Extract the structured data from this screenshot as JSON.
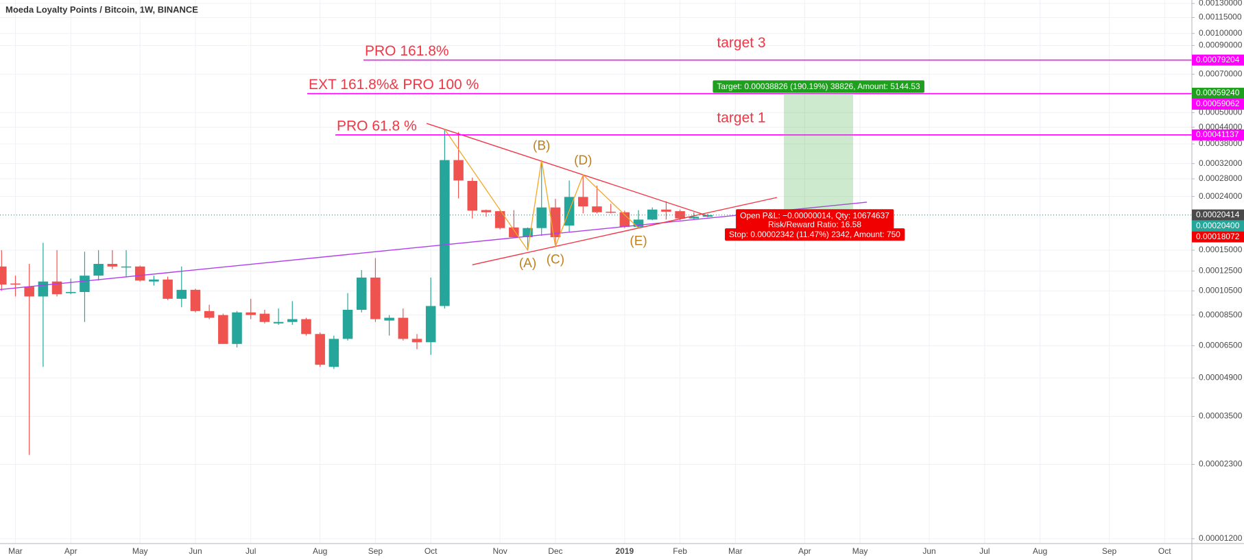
{
  "chart_data": {
    "type": "candlestick",
    "title": "Moeda Loyalty Points / Bitcoin, 1W, BINANCE",
    "log_scale": true,
    "grid": true,
    "up_color": "#26a69a",
    "down_color": "#ef5350",
    "categories": [
      null,
      "Mar",
      null,
      null,
      null,
      "Apr",
      null,
      null,
      null,
      null,
      "May",
      null,
      null,
      null,
      "Jun",
      null,
      null,
      null,
      "Jul",
      null,
      null,
      null,
      null,
      "Aug",
      null,
      null,
      null,
      "Sep",
      null,
      null,
      null,
      "Oct",
      null,
      null,
      null,
      null,
      "Nov",
      null,
      null,
      null,
      "Dec",
      null,
      null,
      null,
      null,
      "2019",
      null,
      null,
      null,
      "Feb",
      null,
      null,
      null,
      "Mar",
      null,
      null,
      null,
      null,
      "Apr",
      null,
      null,
      null,
      "May",
      null,
      null,
      null,
      null,
      "Jun",
      null,
      null,
      null,
      "Jul",
      null,
      null,
      null,
      "Aug",
      null,
      null,
      null,
      null,
      "Sep",
      null,
      null,
      null,
      "Oct",
      null
    ],
    "open": [
      0.00013,
      0.000112,
      0.000109,
      0.0001,
      0.000114,
      0.000103,
      0.000104,
      0.00012,
      0.000133,
      0.000129,
      0.00013,
      0.000114,
      0.000116,
      9.8e-05,
      0.000106,
      8.8e-05,
      8.5e-05,
      6.6e-05,
      8.7e-05,
      8.6e-05,
      7.9e-05,
      8e-05,
      8.2e-05,
      7.2e-05,
      5.4e-05,
      6.9e-05,
      8.9e-05,
      0.000118,
      8.1e-05,
      8.3e-05,
      6.9e-05,
      6.7e-05,
      9.2e-05,
      0.00033,
      0.000275,
      0.000213,
      0.000211,
      0.000183,
      0.000168,
      0.000182,
      0.000218,
      0.000186,
      0.000239,
      0.00022,
      0.00021,
      0.000209,
      0.000184,
      0.000196,
      0.000214,
      0.000211,
      0.000198,
      0.000201,
      null,
      null,
      null,
      null,
      null,
      null,
      null,
      null,
      null,
      null,
      null,
      null,
      null,
      null,
      null,
      null,
      null,
      null,
      null,
      null,
      null,
      null,
      null,
      null,
      null,
      null,
      null,
      null,
      null,
      null,
      null,
      null,
      null,
      null
    ],
    "high": [
      0.00015,
      0.00012,
      0.000133,
      0.00016,
      0.00015,
      0.000117,
      0.000148,
      0.00015,
      0.00015,
      0.00015,
      0.000131,
      0.00012,
      0.000119,
      0.00013,
      0.000107,
      9.3e-05,
      8.6e-05,
      8.8e-05,
      9.8e-05,
      8.9e-05,
      9e-05,
      9.6e-05,
      8.3e-05,
      7.3e-05,
      7.1e-05,
      0.000103,
      0.000126,
      0.00014,
      8.5e-05,
      9e-05,
      7.2e-05,
      0.000118,
      0.000432,
      0.000422,
      0.000283,
      0.000214,
      0.000212,
      0.000213,
      0.000183,
      0.00033,
      0.000235,
      0.000276,
      0.00029,
      0.000264,
      0.000225,
      0.000212,
      0.000213,
      0.000218,
      0.00023,
      0.000214,
      0.000209,
      0.000206,
      null,
      null,
      null,
      null,
      null,
      null,
      null,
      null,
      null,
      null,
      null,
      null,
      null,
      null,
      null,
      null,
      null,
      null,
      null,
      null,
      null,
      null,
      null,
      null,
      null,
      null,
      null,
      null,
      null,
      null,
      null,
      null,
      null,
      null
    ],
    "low": [
      0.000105,
      0.0001,
      2.5e-05,
      5.4e-05,
      0.0001,
      0.000102,
      8e-05,
      0.000115,
      0.000127,
      0.000119,
      0.000114,
      0.00011,
      9.7e-05,
      9.1e-05,
      8.7e-05,
      8.2e-05,
      6.6e-05,
      6.4e-05,
      8.2e-05,
      7.9e-05,
      7.8e-05,
      7.8e-05,
      7.1e-05,
      5.4e-05,
      5.3e-05,
      6.8e-05,
      8.7e-05,
      8e-05,
      7.1e-05,
      6.8e-05,
      6.3e-05,
      6e-05,
      9e-05,
      0.000236,
      0.000198,
      0.000201,
      0.00018,
      0.000168,
      0.00015,
      0.00017,
      0.000155,
      0.000176,
      0.000207,
      0.000207,
      0.000207,
      0.000182,
      0.000182,
      0.000195,
      0.000196,
      0.000195,
      0.000196,
      0.0002,
      null,
      null,
      null,
      null,
      null,
      null,
      null,
      null,
      null,
      null,
      null,
      null,
      null,
      null,
      null,
      null,
      null,
      null,
      null,
      null,
      null,
      null,
      null,
      null,
      null,
      null,
      null,
      null,
      null,
      null,
      null,
      null,
      null,
      null
    ],
    "close": [
      0.000111,
      0.000111,
      0.0001,
      0.000114,
      0.000102,
      0.000104,
      0.00012,
      0.000133,
      0.00013,
      0.00013,
      0.000115,
      0.000116,
      9.8e-05,
      0.000106,
      8.8e-05,
      8.3e-05,
      6.6e-05,
      8.7e-05,
      8.5e-05,
      8e-05,
      8e-05,
      8.2e-05,
      7.2e-05,
      5.5e-05,
      6.9e-05,
      8.9e-05,
      0.000118,
      8.2e-05,
      8.3e-05,
      6.9e-05,
      6.7e-05,
      9.2e-05,
      0.00033,
      0.000276,
      0.000212,
      0.000209,
      0.000182,
      0.000168,
      0.000182,
      0.000218,
      0.000168,
      0.000239,
      0.00022,
      0.000209,
      0.000209,
      0.000184,
      0.000196,
      0.000214,
      0.00021,
      0.000198,
      0.000201,
      0.000204,
      null,
      null,
      null,
      null,
      null,
      null,
      null,
      null,
      null,
      null,
      null,
      null,
      null,
      null,
      null,
      null,
      null,
      null,
      null,
      null,
      null,
      null,
      null,
      null,
      null,
      null,
      null,
      null,
      null,
      null,
      null,
      null,
      null,
      null
    ],
    "ylim": [
      1.15e-05,
      0.00134
    ],
    "yticks": [
      {
        "value": 0.0013,
        "label": "0.00130000"
      },
      {
        "value": 0.00115,
        "label": "0.00115000"
      },
      {
        "value": 0.001,
        "label": "0.00100000"
      },
      {
        "value": 0.0009,
        "label": "0.00090000"
      },
      {
        "value": 0.0007,
        "label": "0.00070000"
      },
      {
        "value": 0.0005,
        "label": "0.00050000"
      },
      {
        "value": 0.00044,
        "label": "0.00044000"
      },
      {
        "value": 0.00038,
        "label": "0.00038000"
      },
      {
        "value": 0.00032,
        "label": "0.00032000"
      },
      {
        "value": 0.00028,
        "label": "0.00028000"
      },
      {
        "value": 0.00024,
        "label": "0.00024000"
      },
      {
        "value": 0.00015,
        "label": "0.00015000"
      },
      {
        "value": 0.000125,
        "label": "0.00012500"
      },
      {
        "value": 0.000105,
        "label": "0.00010500"
      },
      {
        "value": 8.5e-05,
        "label": "0.00008500"
      },
      {
        "value": 6.5e-05,
        "label": "0.00006500"
      },
      {
        "value": 4.9e-05,
        "label": "0.00004900"
      },
      {
        "value": 3.5e-05,
        "label": "0.00003500"
      },
      {
        "value": 2.3e-05,
        "label": "0.00002300"
      },
      {
        "value": 1.2e-05,
        "label": "0.00001200"
      }
    ],
    "last_price": {
      "value": 0.000204,
      "label": "0.00020400"
    },
    "level_color": "#ff00ff",
    "levels": [
      {
        "text": "PRO 161.8%",
        "note": "target 3",
        "value": 0.00079204,
        "value_label": "0.00079204"
      },
      {
        "text": "EXT 161.8%& PRO 100 %",
        "value": 0.00059062,
        "value_label": "0.00059062"
      },
      {
        "text": "PRO 61.8 %",
        "note": "target 1",
        "value": 0.00041137,
        "value_label": "0.00041137"
      }
    ],
    "waves": [
      "(A)",
      "(B)",
      "(C)",
      "(D)",
      "(E)"
    ],
    "position": {
      "entry": 0.00020414,
      "entry_label": "0.00020414",
      "target": 0.0005924,
      "target_label": "0.00059240",
      "stop": 0.00018072,
      "stop_label": "0.00018072",
      "target_text": "Target: 0.00038826 (190.19%) 38826, Amount: 5144.53",
      "pnl_text": "Open P&L: −0.00000014, Qty: 10674637",
      "rr_text": "Risk/Reward Ratio: 16.58",
      "stop_text": "Stop: 0.00002342 (11.47%) 2342, Amount: 750"
    }
  }
}
